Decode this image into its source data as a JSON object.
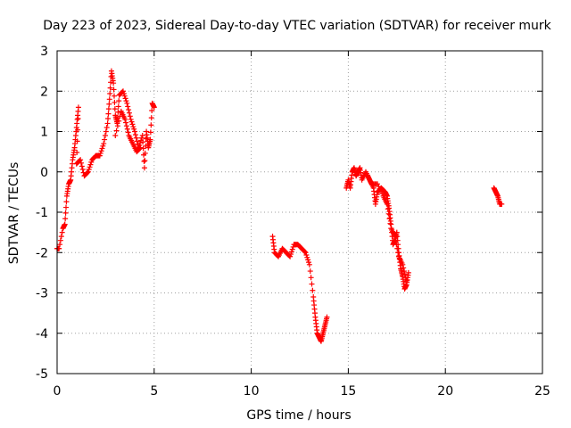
{
  "chart_data": {
    "type": "scatter",
    "title": "Day 223 of 2023, Sidereal Day-to-day VTEC variation (SDTVAR) for receiver murk",
    "xlabel": "GPS time / hours",
    "ylabel": "SDTVAR / TECUs",
    "xlim": [
      0,
      25
    ],
    "ylim": [
      -5,
      3
    ],
    "xticks": [
      "0",
      "5",
      "10",
      "15",
      "20",
      "25"
    ],
    "yticks": [
      "-5",
      "-4",
      "-3",
      "-2",
      "-1",
      "0",
      "1",
      "2",
      "3"
    ],
    "grid": true,
    "marker": "plus",
    "color": "#ff0000",
    "series": [
      {
        "name": "SDTVAR",
        "segments": [
          [
            [
              0.0,
              -1.9
            ],
            [
              0.1,
              -1.9
            ],
            [
              0.3,
              -1.4
            ],
            [
              0.4,
              -1.3
            ],
            [
              0.5,
              -0.6
            ],
            [
              0.6,
              -0.3
            ],
            [
              0.7,
              -0.2
            ],
            [
              0.8,
              0.3
            ],
            [
              0.9,
              0.6
            ],
            [
              1.0,
              1.1
            ],
            [
              1.1,
              1.6
            ],
            [
              1.0,
              0.2
            ],
            [
              1.2,
              0.3
            ],
            [
              1.4,
              -0.1
            ],
            [
              1.6,
              0.0
            ],
            [
              1.8,
              0.3
            ],
            [
              2.0,
              0.4
            ],
            [
              2.2,
              0.4
            ],
            [
              2.4,
              0.7
            ],
            [
              2.6,
              1.2
            ],
            [
              2.7,
              1.8
            ],
            [
              2.8,
              2.5
            ],
            [
              2.9,
              2.2
            ],
            [
              3.0,
              1.4
            ],
            [
              3.1,
              1.2
            ],
            [
              3.2,
              1.9
            ],
            [
              3.4,
              2.0
            ],
            [
              3.6,
              1.7
            ],
            [
              3.8,
              1.3
            ],
            [
              4.0,
              1.0
            ],
            [
              4.2,
              0.6
            ],
            [
              4.4,
              0.9
            ],
            [
              4.5,
              0.1
            ],
            [
              4.6,
              1.0
            ],
            [
              4.7,
              0.6
            ],
            [
              4.8,
              0.8
            ],
            [
              4.9,
              1.7
            ],
            [
              5.0,
              1.6
            ]
          ],
          [
            [
              3.0,
              0.9
            ],
            [
              3.3,
              1.5
            ],
            [
              3.5,
              1.3
            ],
            [
              3.7,
              0.9
            ],
            [
              3.9,
              0.7
            ],
            [
              4.1,
              0.5
            ],
            [
              4.3,
              0.6
            ]
          ],
          [
            [
              11.1,
              -1.6
            ],
            [
              11.2,
              -2.0
            ],
            [
              11.4,
              -2.1
            ],
            [
              11.6,
              -1.9
            ],
            [
              11.8,
              -2.0
            ],
            [
              12.0,
              -2.1
            ],
            [
              12.2,
              -1.8
            ],
            [
              12.4,
              -1.8
            ],
            [
              12.6,
              -1.9
            ],
            [
              12.8,
              -2.0
            ],
            [
              13.0,
              -2.3
            ],
            [
              13.2,
              -3.1
            ],
            [
              13.3,
              -3.6
            ],
            [
              13.4,
              -4.0
            ],
            [
              13.5,
              -4.1
            ],
            [
              13.6,
              -4.2
            ],
            [
              13.7,
              -4.0
            ],
            [
              13.8,
              -3.8
            ],
            [
              13.9,
              -3.6
            ]
          ],
          [
            [
              14.9,
              -0.4
            ],
            [
              15.0,
              -0.2
            ],
            [
              15.1,
              -0.4
            ],
            [
              15.2,
              0.0
            ],
            [
              15.3,
              0.1
            ],
            [
              15.4,
              -0.1
            ],
            [
              15.5,
              0.0
            ],
            [
              15.6,
              0.1
            ],
            [
              15.7,
              -0.2
            ],
            [
              15.9,
              0.0
            ],
            [
              16.1,
              -0.2
            ],
            [
              16.3,
              -0.4
            ],
            [
              16.4,
              -0.8
            ],
            [
              16.5,
              -0.5
            ],
            [
              16.7,
              -0.4
            ],
            [
              16.9,
              -0.5
            ],
            [
              17.0,
              -0.6
            ],
            [
              17.1,
              -0.9
            ],
            [
              17.2,
              -1.3
            ],
            [
              17.3,
              -1.8
            ],
            [
              17.4,
              -1.7
            ],
            [
              17.5,
              -1.5
            ],
            [
              17.6,
              -2.0
            ],
            [
              17.7,
              -2.4
            ],
            [
              17.8,
              -2.6
            ],
            [
              17.9,
              -2.9
            ],
            [
              18.0,
              -2.8
            ],
            [
              18.1,
              -2.5
            ]
          ],
          [
            [
              16.0,
              -0.1
            ],
            [
              16.2,
              -0.3
            ],
            [
              16.5,
              -0.3
            ],
            [
              16.8,
              -0.6
            ],
            [
              17.0,
              -0.8
            ],
            [
              17.2,
              -1.4
            ],
            [
              17.4,
              -1.6
            ],
            [
              17.6,
              -2.1
            ],
            [
              17.8,
              -2.3
            ],
            [
              18.0,
              -2.7
            ]
          ],
          [
            [
              22.5,
              -0.4
            ],
            [
              22.6,
              -0.5
            ],
            [
              22.7,
              -0.6
            ],
            [
              22.8,
              -0.8
            ],
            [
              22.9,
              -0.8
            ]
          ]
        ]
      }
    ]
  }
}
